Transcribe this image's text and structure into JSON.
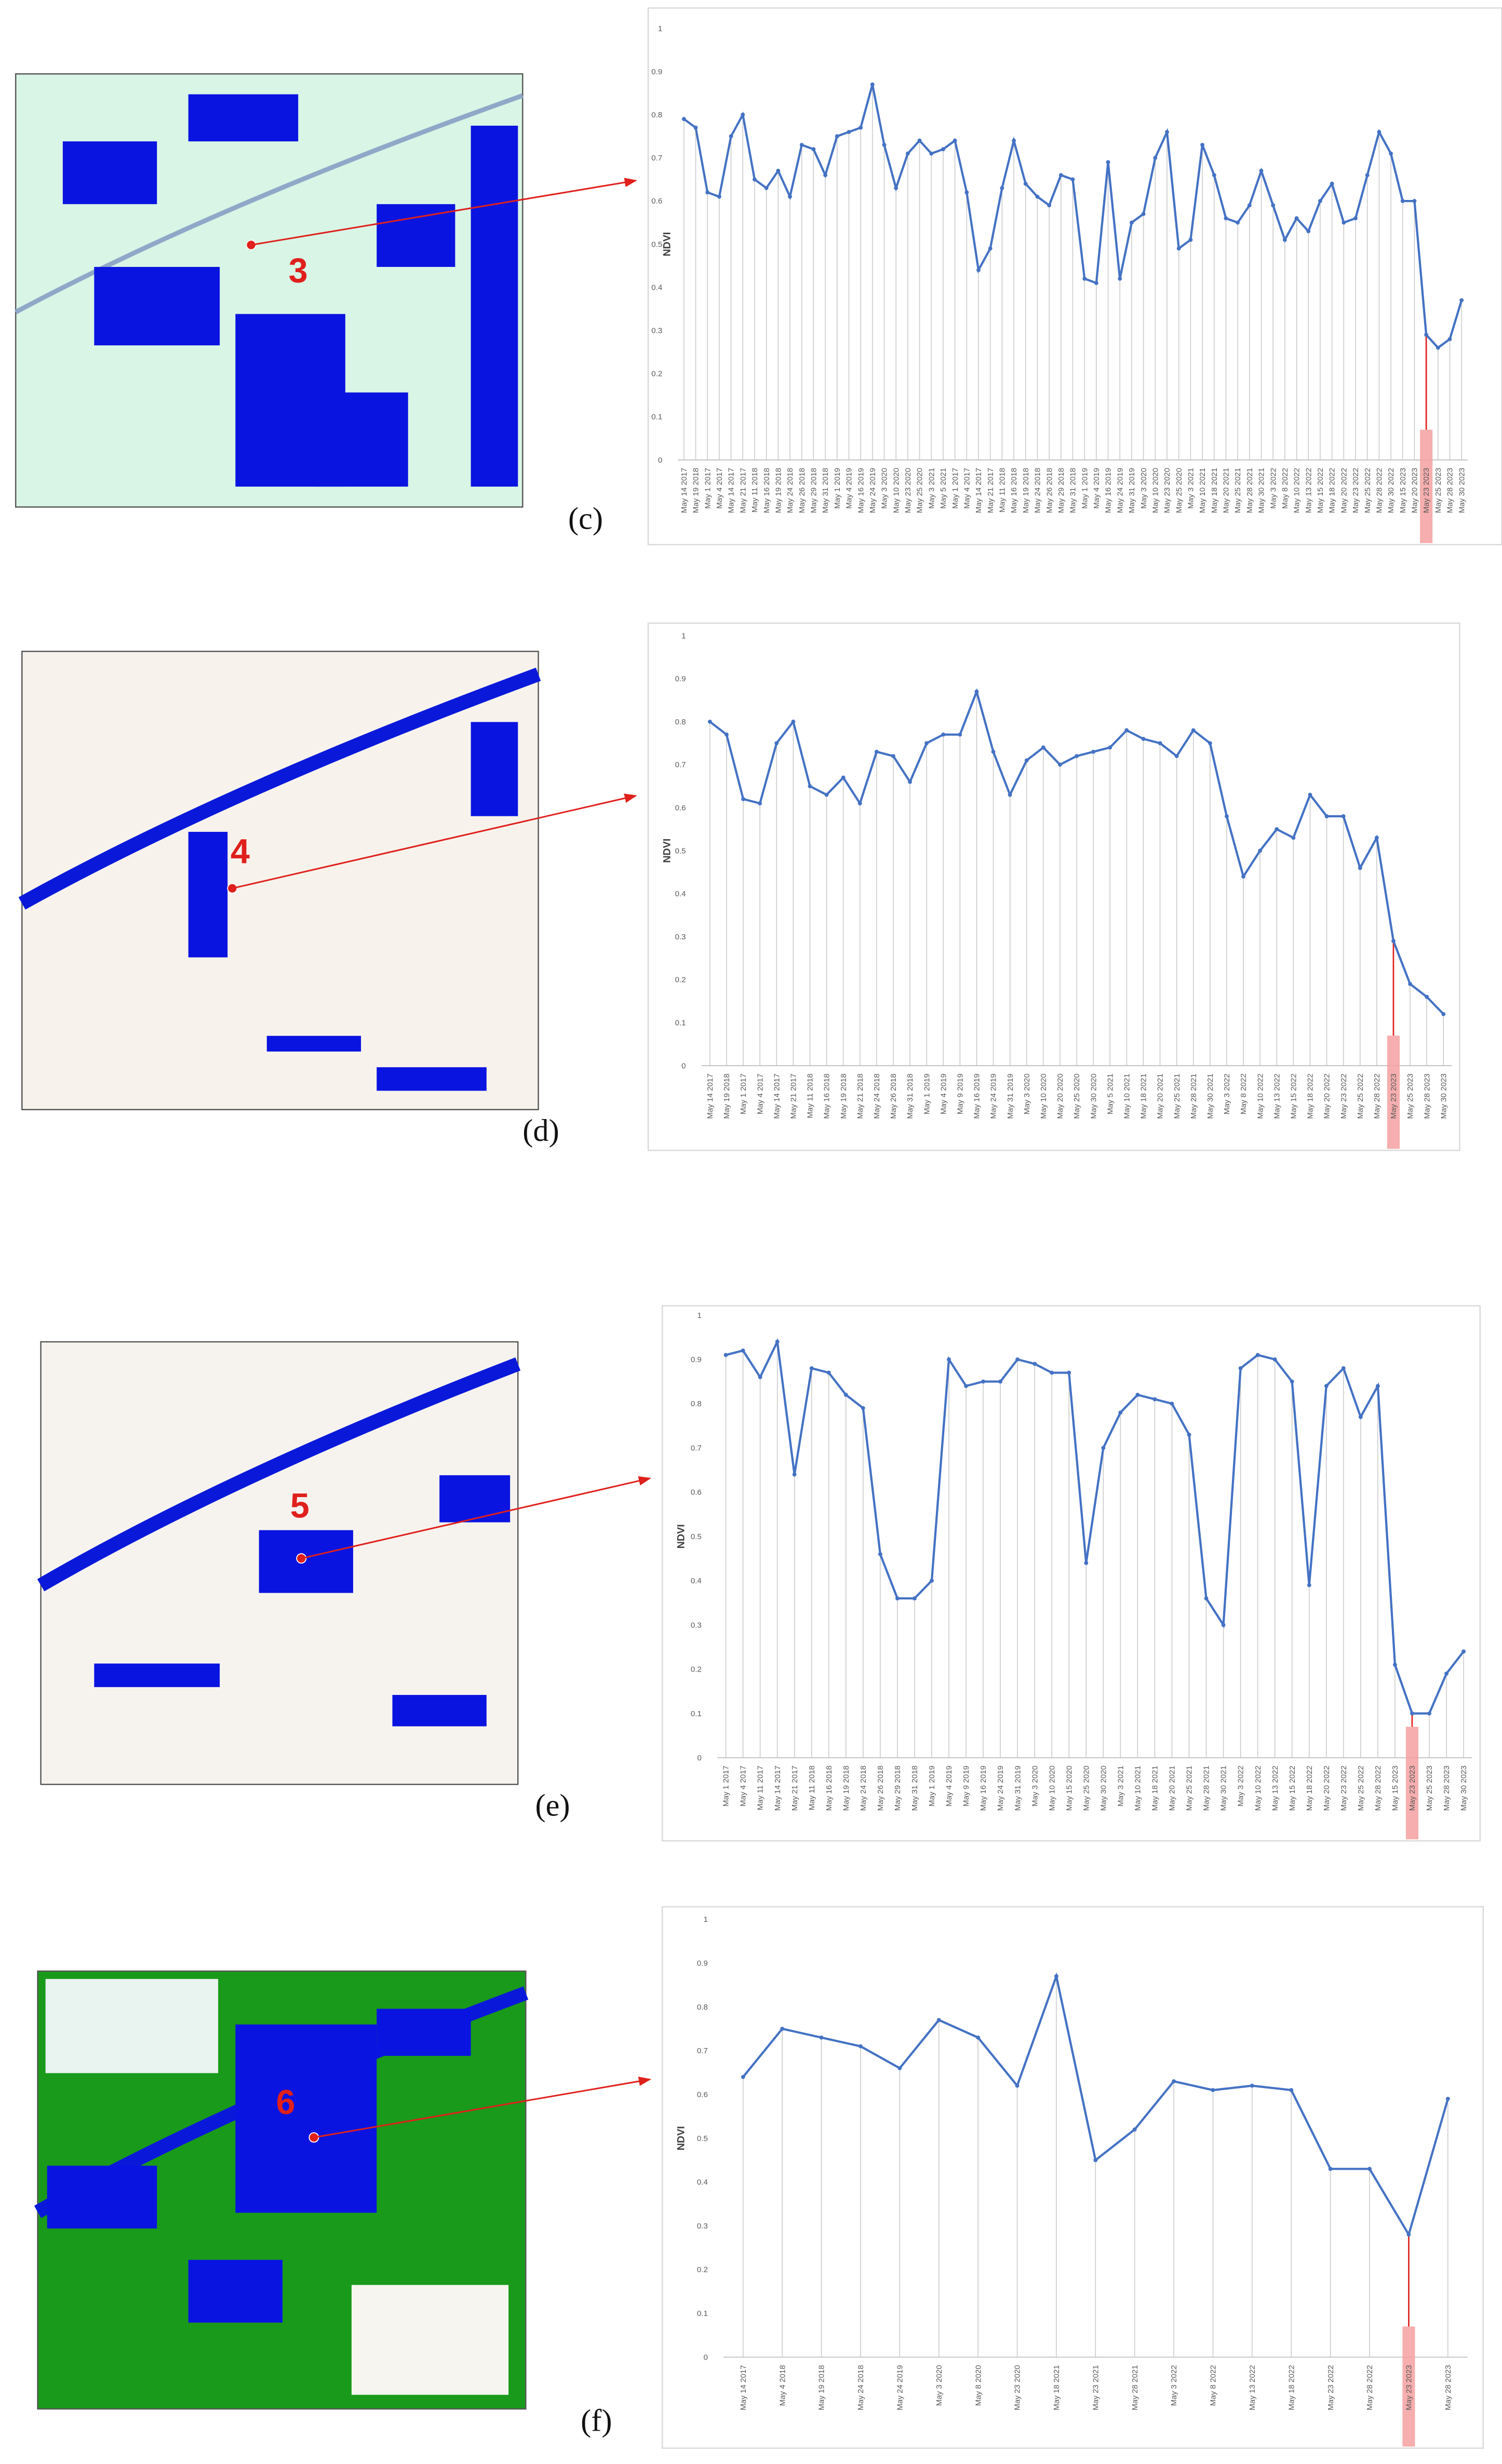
{
  "chart_data": [
    {
      "type": "line",
      "panel_label": "(c)",
      "map_label": "3",
      "y_label": "NDVI",
      "color": "#4472c4",
      "highlight": {
        "index": 63,
        "color": "#f4a0a0"
      },
      "ylim": [
        0,
        1
      ],
      "yticks": [
        0,
        0.1,
        0.2,
        0.3,
        0.4,
        0.5,
        0.6,
        0.7,
        0.8,
        0.9,
        1
      ],
      "grid": false,
      "categories": [
        "May 14 2017",
        "May 19 2018",
        "May 1 2017",
        "May 4 2017",
        "May 14 2017",
        "May 21 2017",
        "May 11 2018",
        "May 16 2018",
        "May 19 2018",
        "May 24 2018",
        "May 26 2018",
        "May 29 2018",
        "May 31 2018",
        "May 1 2019",
        "May 4 2019",
        "May 16 2019",
        "May 24 2019",
        "May 3 2020",
        "May 10 2020",
        "May 23 2020",
        "May 25 2020",
        "May 3 2021",
        "May 5 2021",
        "May 1 2017",
        "May 4 2017",
        "May 14 2017",
        "May 21 2017",
        "May 11 2018",
        "May 16 2018",
        "May 19 2018",
        "May 24 2018",
        "May 26 2018",
        "May 29 2018",
        "May 31 2018",
        "May 1 2019",
        "May 4 2019",
        "May 16 2019",
        "May 24 2019",
        "May 31 2019",
        "May 3 2020",
        "May 10 2020",
        "May 23 2020",
        "May 25 2020",
        "May 3 2021",
        "May 10 2021",
        "May 18 2021",
        "May 20 2021",
        "May 25 2021",
        "May 28 2021",
        "May 30 2021",
        "May 3 2022",
        "May 8 2022",
        "May 10 2022",
        "May 13 2022",
        "May 15 2022",
        "May 18 2022",
        "May 20 2022",
        "May 23 2022",
        "May 25 2022",
        "May 28 2022",
        "May 30 2022",
        "May 15 2023",
        "May 20 2023",
        "May 23 2023",
        "May 25 2023",
        "May 28 2023",
        "May 30 2023"
      ],
      "values": [
        0.79,
        0.77,
        0.62,
        0.61,
        0.75,
        0.8,
        0.65,
        0.63,
        0.67,
        0.61,
        0.73,
        0.72,
        0.66,
        0.75,
        0.76,
        0.77,
        0.87,
        0.73,
        0.63,
        0.71,
        0.74,
        0.71,
        0.72,
        0.74,
        0.62,
        0.44,
        0.49,
        0.63,
        0.74,
        0.64,
        0.61,
        0.59,
        0.66,
        0.65,
        0.42,
        0.41,
        0.69,
        0.42,
        0.55,
        0.57,
        0.7,
        0.76,
        0.49,
        0.51,
        0.73,
        0.66,
        0.56,
        0.55,
        0.59,
        0.67,
        0.59,
        0.51,
        0.56,
        0.53,
        0.6,
        0.64,
        0.55,
        0.56,
        0.66,
        0.76,
        0.71,
        0.6,
        0.6,
        0.29,
        0.26,
        0.28,
        0.37
      ]
    },
    {
      "type": "line",
      "panel_label": "(d)",
      "map_label": "4",
      "y_label": "NDVI",
      "color": "#4472c4",
      "highlight": {
        "index": 41,
        "color": "#f4a0a0"
      },
      "ylim": [
        0,
        1
      ],
      "yticks": [
        0,
        0.1,
        0.2,
        0.3,
        0.4,
        0.5,
        0.6,
        0.7,
        0.8,
        0.9,
        1
      ],
      "grid": false,
      "categories": [
        "May 14 2017",
        "May 19 2018",
        "May 1 2017",
        "May 4 2017",
        "May 14 2017",
        "May 21 2017",
        "May 11 2018",
        "May 16 2018",
        "May 19 2018",
        "May 21 2018",
        "May 24 2018",
        "May 26 2018",
        "May 31 2018",
        "May 1 2019",
        "May 4 2019",
        "May 9 2019",
        "May 16 2019",
        "May 24 2019",
        "May 31 2019",
        "May 3 2020",
        "May 10 2020",
        "May 20 2020",
        "May 25 2020",
        "May 30 2020",
        "May 5 2021",
        "May 10 2021",
        "May 18 2021",
        "May 20 2021",
        "May 25 2021",
        "May 28 2021",
        "May 30 2021",
        "May 3 2022",
        "May 8 2022",
        "May 10 2022",
        "May 13 2022",
        "May 15 2022",
        "May 18 2022",
        "May 20 2022",
        "May 23 2022",
        "May 25 2022",
        "May 28 2022",
        "May 23 2023",
        "May 25 2023",
        "May 28 2023",
        "May 30 2023"
      ],
      "values": [
        0.8,
        0.77,
        0.62,
        0.61,
        0.75,
        0.8,
        0.65,
        0.63,
        0.67,
        0.61,
        0.73,
        0.72,
        0.66,
        0.75,
        0.77,
        0.77,
        0.87,
        0.73,
        0.63,
        0.71,
        0.74,
        0.7,
        0.72,
        0.73,
        0.74,
        0.78,
        0.76,
        0.75,
        0.72,
        0.78,
        0.75,
        0.58,
        0.44,
        0.5,
        0.55,
        0.53,
        0.63,
        0.58,
        0.58,
        0.46,
        0.53,
        0.29,
        0.19,
        0.16,
        0.12
      ]
    },
    {
      "type": "line",
      "panel_label": "(e)",
      "map_label": "5",
      "y_label": "NDVI",
      "color": "#4472c4",
      "highlight": {
        "index": 40,
        "color": "#f4a0a0"
      },
      "ylim": [
        0,
        1
      ],
      "yticks": [
        0,
        0.1,
        0.2,
        0.3,
        0.4,
        0.5,
        0.6,
        0.7,
        0.8,
        0.9,
        1
      ],
      "grid": false,
      "categories": [
        "May 1 2017",
        "May 4 2017",
        "May 11 2017",
        "May 14 2017",
        "May 21 2017",
        "May 11 2018",
        "May 16 2018",
        "May 19 2018",
        "May 24 2018",
        "May 26 2018",
        "May 29 2018",
        "May 31 2018",
        "May 1 2019",
        "May 4 2019",
        "May 9 2019",
        "May 16 2019",
        "May 24 2019",
        "May 31 2019",
        "May 3 2020",
        "May 10 2020",
        "May 15 2020",
        "May 25 2020",
        "May 30 2020",
        "May 3 2021",
        "May 10 2021",
        "May 18 2021",
        "May 20 2021",
        "May 25 2021",
        "May 28 2021",
        "May 30 2021",
        "May 3 2022",
        "May 10 2022",
        "May 13 2022",
        "May 15 2022",
        "May 18 2022",
        "May 20 2022",
        "May 23 2022",
        "May 25 2022",
        "May 28 2022",
        "May 15 2023",
        "May 23 2023",
        "May 25 2023",
        "May 28 2023",
        "May 30 2023"
      ],
      "values": [
        0.91,
        0.92,
        0.86,
        0.94,
        0.64,
        0.88,
        0.87,
        0.82,
        0.79,
        0.46,
        0.36,
        0.36,
        0.4,
        0.9,
        0.84,
        0.85,
        0.85,
        0.9,
        0.89,
        0.87,
        0.87,
        0.44,
        0.7,
        0.78,
        0.82,
        0.81,
        0.8,
        0.73,
        0.36,
        0.3,
        0.88,
        0.91,
        0.9,
        0.85,
        0.39,
        0.84,
        0.88,
        0.77,
        0.84,
        0.21,
        0.1,
        0.1,
        0.19,
        0.24
      ]
    },
    {
      "type": "line",
      "panel_label": "(f)",
      "map_label": "6",
      "y_label": "NDVI",
      "color": "#4472c4",
      "highlight": {
        "index": 17,
        "color": "#f4a0a0"
      },
      "ylim": [
        0,
        1
      ],
      "yticks": [
        0,
        0.1,
        0.2,
        0.3,
        0.4,
        0.5,
        0.6,
        0.7,
        0.8,
        0.9,
        1
      ],
      "grid": false,
      "categories": [
        "May 14 2017",
        "May 4 2018",
        "May 19 2018",
        "May 24 2018",
        "May 24 2019",
        "May 3 2020",
        "May 8 2020",
        "May 23 2020",
        "May 18 2021",
        "May 23 2021",
        "May 28 2021",
        "May 3 2022",
        "May 8 2022",
        "May 13 2022",
        "May 18 2022",
        "May 23 2022",
        "May 28 2022",
        "May 23 2023",
        "May 28 2023"
      ],
      "values": [
        0.64,
        0.75,
        0.73,
        0.71,
        0.66,
        0.77,
        0.73,
        0.62,
        0.87,
        0.45,
        0.52,
        0.63,
        0.61,
        0.62,
        0.61,
        0.43,
        0.43,
        0.28,
        0.59
      ]
    }
  ]
}
